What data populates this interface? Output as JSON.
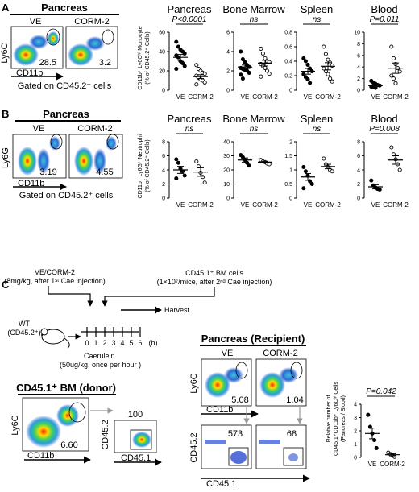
{
  "panelA": {
    "letter": "A",
    "flow": {
      "title": "Pancreas",
      "col1": "VE",
      "col2": "CORM-2",
      "yaxis": "Ly6C",
      "xaxis": "CD11b",
      "pct1": "28.5",
      "pct2": "3.2",
      "gated": "Gated on CD45.2⁺ cells"
    },
    "ylabel_line1": "CD11b⁺ Ly6Cʰⁱ Monocyte",
    "ylabel_line2": "(% of CD45.2⁺ Cells)"
  },
  "panelB": {
    "letter": "B",
    "flow": {
      "title": "Pancreas",
      "col1": "VE",
      "col2": "CORM-2",
      "yaxis": "Ly6G",
      "xaxis": "CD11b",
      "pct1": "3.19",
      "pct2": "4.55",
      "gated": "Gated on CD45.2⁺ cells"
    },
    "ylabel_line1": "CD11b⁺ Ly6G⁺ Neutrophil",
    "ylabel_line2": "(% of CD45.2⁺ Cells)"
  },
  "panelC": {
    "letter": "C",
    "timeline": {
      "drug_line1": "VE/CORM-2",
      "drug_line2": "(8mg/kg, after 1ˢᵗ Cae injection)",
      "cells_line1": "CD45.1⁺ BM cells",
      "cells_line2": "(1×10⁷/mice, after 2ⁿᵈ Cae injection)",
      "harvest": "Harvest",
      "mouse_line1": "WT",
      "mouse_line2": "(CD45.2⁺)",
      "ticks": [
        "0",
        "1",
        "2",
        "3",
        "4",
        "5",
        "6"
      ],
      "unit": "(h)",
      "cae_line1": "Caerulein",
      "cae_line2": "(50ug/kg, once per hour )"
    },
    "donor": {
      "title": "CD45.1⁺ BM (donor)",
      "yaxis": "Ly6C",
      "xaxis": "CD11b",
      "pct": "6.60",
      "count": "100",
      "y2": "CD45.2",
      "x2": "CD45.1"
    },
    "recipient": {
      "title": "Pancreas (Recipient)",
      "col1": "VE",
      "col2": "CORM-2",
      "yaxis": "Ly6C",
      "xaxis": "CD11b",
      "pct1": "5.08",
      "pct2": "1.04",
      "count1": "573",
      "count2": "68",
      "y2": "CD45.2",
      "x2": "CD45.1"
    },
    "ylabel_line1": "Relative number of",
    "ylabel_line2": "CD45.1⁺CD11b⁺ Ly6Cʰⁱ Cells",
    "ylabel_line3": "(Pancreas / Blood)"
  },
  "chart_data": [
    {
      "type": "scatter",
      "panel": "A",
      "title": "Pancreas",
      "significance": "P<0.0001",
      "categories": [
        "VE",
        "CORM-2"
      ],
      "ylim": [
        0,
        60
      ],
      "yticks": [
        0,
        20,
        40,
        60
      ],
      "series": [
        {
          "values": [
            [
              50,
              45,
              42,
              40,
              38,
              36,
              34,
              30,
              28,
              25,
              22
            ],
            [
              26,
              22,
              20,
              18,
              17,
              15,
              13,
              11,
              10,
              8,
              6
            ]
          ]
        }
      ],
      "means": [
        34,
        14
      ],
      "sem": [
        3,
        2
      ]
    },
    {
      "type": "scatter",
      "panel": "A",
      "title": "Bone Marrow",
      "significance": "ns",
      "categories": [
        "VE",
        "CORM-2"
      ],
      "ylim": [
        0,
        6
      ],
      "yticks": [
        0,
        2,
        4,
        6
      ],
      "series": [
        {
          "values": [
            [
              4.0,
              3.2,
              2.9,
              2.6,
              2.4,
              2.3,
              2.2,
              2.1,
              2.0,
              1.8,
              1.6,
              1.2
            ],
            [
              4.3,
              3.8,
              3.3,
              3.0,
              2.9,
              2.7,
              2.5,
              2.3,
              2.0,
              1.7,
              1.4
            ]
          ]
        }
      ],
      "means": [
        2.4,
        2.8
      ],
      "sem": [
        0.2,
        0.3
      ]
    },
    {
      "type": "scatter",
      "panel": "A",
      "title": "Spleen",
      "significance": "ns",
      "categories": [
        "VE",
        "CORM-2"
      ],
      "ylim": [
        0,
        0.8
      ],
      "yticks": [
        0,
        0.2,
        0.4,
        0.6,
        0.8
      ],
      "series": [
        {
          "values": [
            [
              0.44,
              0.4,
              0.35,
              0.3,
              0.26,
              0.22,
              0.18,
              0.15,
              0.1
            ],
            [
              0.6,
              0.5,
              0.42,
              0.38,
              0.34,
              0.3,
              0.26,
              0.22,
              0.16,
              0.12
            ]
          ]
        }
      ],
      "means": [
        0.26,
        0.33
      ],
      "sem": [
        0.04,
        0.05
      ]
    },
    {
      "type": "scatter",
      "panel": "A",
      "title": "Blood",
      "significance": "P=0.011",
      "categories": [
        "VE",
        "CORM-2"
      ],
      "ylim": [
        0,
        10
      ],
      "yticks": [
        0,
        2,
        4,
        6,
        8,
        10
      ],
      "series": [
        {
          "values": [
            [
              1.6,
              1.3,
              1.1,
              0.9,
              0.8,
              0.6,
              0.5,
              0.4
            ],
            [
              7.5,
              5.5,
              4.5,
              3.8,
              3.2,
              2.5,
              2.0,
              1.2
            ]
          ]
        }
      ],
      "means": [
        0.8,
        3.8
      ],
      "sem": [
        0.2,
        0.9
      ]
    },
    {
      "type": "scatter",
      "panel": "B",
      "title": "Pancreas",
      "significance": "ns",
      "categories": [
        "VE",
        "CORM-2"
      ],
      "ylim": [
        0,
        8
      ],
      "yticks": [
        0,
        2,
        4,
        6,
        8
      ],
      "series": [
        {
          "values": [
            [
              5.5,
              5.0,
              4.2,
              3.8,
              3.2,
              2.8
            ],
            [
              5.2,
              4.5,
              3.6,
              3.0,
              2.2
            ]
          ]
        }
      ],
      "means": [
        4.0,
        3.7
      ],
      "sem": [
        0.5,
        0.6
      ]
    },
    {
      "type": "scatter",
      "panel": "B",
      "title": "Bone Marrow",
      "significance": "ns",
      "categories": [
        "VE",
        "CORM-2"
      ],
      "ylim": [
        0,
        40
      ],
      "yticks": [
        0,
        10,
        20,
        30,
        40
      ],
      "series": [
        {
          "values": [
            [
              30.5,
              29,
              27,
              25,
              23
            ],
            [
              27,
              26,
              25.5,
              24.5,
              24
            ]
          ]
        }
      ],
      "means": [
        27,
        25.5
      ],
      "sem": [
        1.5,
        0.6
      ]
    },
    {
      "type": "scatter",
      "panel": "B",
      "title": "Spleen",
      "significance": "ns",
      "categories": [
        "VE",
        "CORM-2"
      ],
      "ylim": [
        0,
        2.0
      ],
      "yticks": [
        0,
        0.5,
        1.0,
        1.5,
        2.0
      ],
      "series": [
        {
          "values": [
            [
              1.1,
              0.95,
              0.8,
              0.6,
              0.5,
              0.35
            ],
            [
              1.4,
              1.2,
              1.1,
              1.0,
              0.95
            ]
          ]
        }
      ],
      "means": [
        0.75,
        1.12
      ],
      "sem": [
        0.12,
        0.08
      ]
    },
    {
      "type": "scatter",
      "panel": "B",
      "title": "Blood",
      "significance": "P=0.008",
      "categories": [
        "VE",
        "CORM-2"
      ],
      "ylim": [
        0,
        8
      ],
      "yticks": [
        0,
        2,
        4,
        6,
        8
      ],
      "series": [
        {
          "values": [
            [
              2.5,
              1.8,
              1.5,
              1.3,
              1.2
            ],
            [
              7.2,
              6.2,
              5.5,
              4.8,
              4.0
            ]
          ]
        }
      ],
      "means": [
        1.6,
        5.4
      ],
      "sem": [
        0.3,
        0.6
      ]
    },
    {
      "type": "scatter",
      "panel": "C",
      "title": "",
      "significance": "P=0.042",
      "categories": [
        "VE",
        "CORM-2"
      ],
      "ylim": [
        0,
        4
      ],
      "yticks": [
        0,
        1,
        2,
        3,
        4
      ],
      "series": [
        {
          "values": [
            [
              3.2,
              2.3,
              1.8,
              1.3,
              0.7
            ],
            [
              0.35,
              0.25,
              0.15,
              0.05
            ]
          ]
        }
      ],
      "means": [
        1.8,
        0.2
      ],
      "sem": [
        0.4,
        0.08
      ]
    }
  ]
}
